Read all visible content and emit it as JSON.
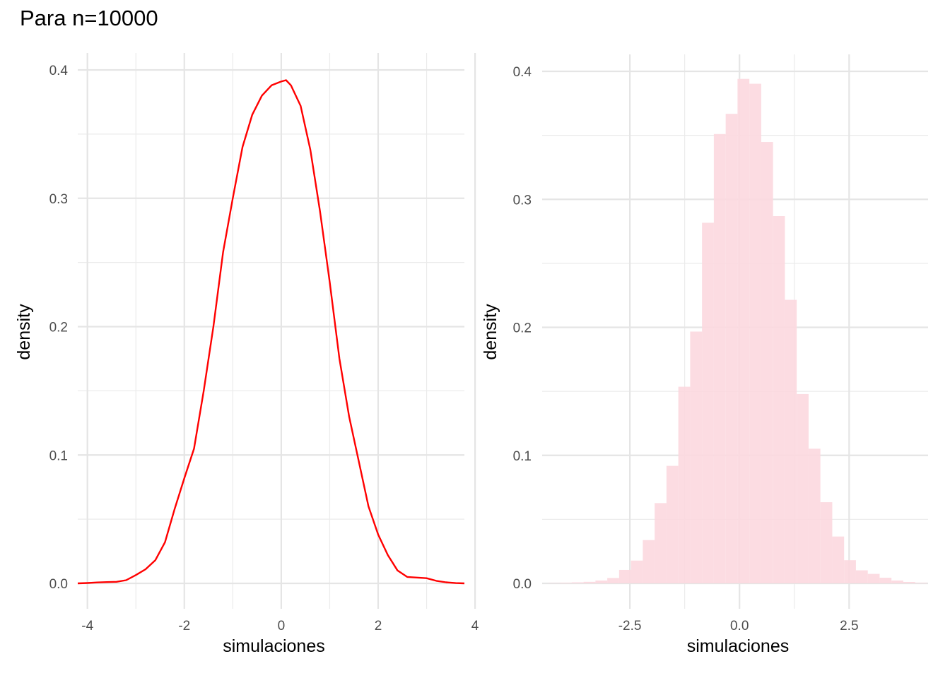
{
  "title": "Para n=10000",
  "chart_data": [
    {
      "type": "line",
      "xlabel": "simulaciones",
      "ylabel": "density",
      "xlim": [
        -4.2,
        3.78
      ],
      "ylim": [
        0,
        0.4
      ],
      "xticks": [
        -4,
        -2,
        0,
        2,
        4
      ],
      "xtick_labels": [
        "-4",
        "-2",
        "0",
        "2",
        "4"
      ],
      "yticks": [
        0.0,
        0.1,
        0.2,
        0.3,
        0.4
      ],
      "ytick_labels": [
        "0.0",
        "0.1",
        "0.2",
        "0.3",
        "0.4"
      ],
      "grid": true,
      "line_color": "#ff0000",
      "x": [
        -4.2,
        -4.0,
        -3.8,
        -3.6,
        -3.4,
        -3.2,
        -3.0,
        -2.8,
        -2.6,
        -2.4,
        -2.2,
        -2.0,
        -1.8,
        -1.6,
        -1.4,
        -1.2,
        -1.0,
        -0.8,
        -0.6,
        -0.4,
        -0.2,
        0.0,
        0.1,
        0.2,
        0.4,
        0.6,
        0.8,
        1.0,
        1.2,
        1.4,
        1.6,
        1.8,
        2.0,
        2.2,
        2.4,
        2.6,
        2.8,
        3.0,
        3.2,
        3.4,
        3.6,
        3.78
      ],
      "y": [
        0.0,
        0.0003,
        0.0007,
        0.001,
        0.0012,
        0.0025,
        0.0065,
        0.011,
        0.018,
        0.032,
        0.058,
        0.082,
        0.105,
        0.15,
        0.2,
        0.258,
        0.3,
        0.34,
        0.365,
        0.38,
        0.388,
        0.391,
        0.392,
        0.388,
        0.372,
        0.338,
        0.29,
        0.235,
        0.175,
        0.13,
        0.095,
        0.06,
        0.038,
        0.022,
        0.01,
        0.005,
        0.0045,
        0.004,
        0.002,
        0.0008,
        0.0002,
        0.0
      ]
    },
    {
      "type": "bar",
      "xlabel": "simulaciones",
      "ylabel": "density",
      "xlim": [
        -4.5,
        4.3
      ],
      "ylim": [
        0,
        0.4
      ],
      "xticks": [
        -2.5,
        0.0,
        2.5
      ],
      "xtick_labels": [
        "-2.5",
        "0.0",
        "2.5"
      ],
      "yticks": [
        0.0,
        0.1,
        0.2,
        0.3,
        0.4
      ],
      "ytick_labels": [
        "0.0",
        "0.1",
        "0.2",
        "0.3",
        "0.4"
      ],
      "grid": true,
      "bar_color": "#fcd8df",
      "bin_width": 0.27,
      "bin_centers": [
        -4.23,
        -3.96,
        -3.69,
        -3.42,
        -3.15,
        -2.88,
        -2.61,
        -2.34,
        -2.07,
        -1.8,
        -1.53,
        -1.26,
        -0.99,
        -0.72,
        -0.45,
        -0.18,
        0.09,
        0.36,
        0.63,
        0.9,
        1.17,
        1.44,
        1.71,
        1.98,
        2.25,
        2.52,
        2.79,
        3.06,
        3.33,
        3.6,
        3.87,
        4.14
      ],
      "values": [
        0.0002,
        0.0005,
        0.0008,
        0.0012,
        0.0022,
        0.0042,
        0.0105,
        0.0178,
        0.0338,
        0.0627,
        0.0918,
        0.1536,
        0.1967,
        0.2817,
        0.351,
        0.3668,
        0.3941,
        0.3903,
        0.3448,
        0.2869,
        0.2215,
        0.1479,
        0.1052,
        0.0634,
        0.0366,
        0.0181,
        0.0102,
        0.0074,
        0.0044,
        0.0022,
        0.0011,
        0.0004
      ]
    }
  ]
}
